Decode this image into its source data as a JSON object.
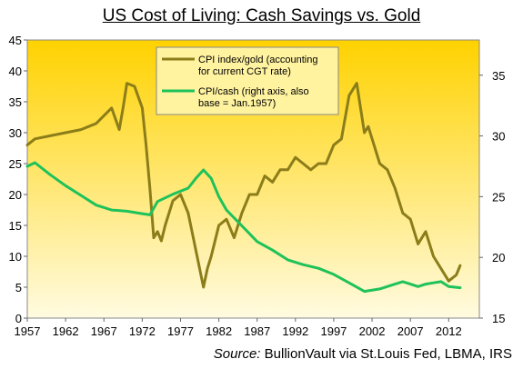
{
  "title": "US Cost of Living: Cash Savings vs. Gold",
  "source_prefix": "Source:",
  "source_text": " BullionVault via St.Louis Fed, LBMA, IRS",
  "colors": {
    "gold_line": "#8b7d1a",
    "cash_line": "#1fc25a",
    "plot_top": "#ffd200",
    "plot_bottom": "#fffbe0",
    "legend_bg": "#fff3a0"
  },
  "chart_data": {
    "type": "line",
    "title": "US Cost of Living: Cash Savings vs. Gold",
    "grid": false,
    "legend_position": "top-center",
    "x_ticks": [
      "1957",
      "1962",
      "1967",
      "1972",
      "1977",
      "1982",
      "1987",
      "1992",
      "1997",
      "2002",
      "2007",
      "2012"
    ],
    "xlim": [
      1957,
      2016
    ],
    "y_left": {
      "lim": [
        0,
        45
      ],
      "ticks": [
        "0",
        "5",
        "10",
        "15",
        "20",
        "25",
        "30",
        "35",
        "40",
        "45"
      ]
    },
    "y_right": {
      "lim": [
        15,
        37.9
      ],
      "ticks": [
        "15",
        "20",
        "25",
        "30",
        "35"
      ]
    },
    "series": [
      {
        "name": "CPI index/gold (accounting for current CGT rate)",
        "axis": "left",
        "color": "#8b7d1a",
        "x": [
          1957,
          1958,
          1960,
          1962,
          1964,
          1966,
          1968,
          1969,
          1969.5,
          1970,
          1971,
          1972,
          1972.5,
          1973,
          1973.5,
          1974,
          1974.5,
          1975,
          1976,
          1977,
          1978,
          1979,
          1980,
          1980.5,
          1981,
          1982,
          1983,
          1984,
          1985,
          1986,
          1987,
          1988,
          1989,
          1990,
          1991,
          1992,
          1993,
          1994,
          1995,
          1996,
          1997,
          1998,
          1999,
          2000,
          2001,
          2001.5,
          2002,
          2003,
          2004,
          2005,
          2006,
          2007,
          2008,
          2009,
          2010,
          2011,
          2012,
          2013,
          2013.5
        ],
        "y": [
          28,
          29,
          29.5,
          30,
          30.5,
          31.5,
          34,
          30.5,
          34,
          38,
          37.5,
          34,
          28,
          21,
          13,
          14,
          12.5,
          15,
          19,
          20,
          17,
          11,
          5,
          8,
          10,
          15,
          16,
          13,
          17,
          20,
          20,
          23,
          22,
          24,
          24,
          26,
          25,
          24,
          25,
          25,
          28,
          29,
          36,
          38,
          30,
          31,
          29,
          25,
          24,
          21,
          17,
          16,
          12,
          14,
          10,
          8,
          6,
          7,
          8.5
        ]
      },
      {
        "name": "CPI/cash (right axis, also base = Jan.1957)",
        "axis": "right",
        "color": "#1fc25a",
        "x": [
          1957,
          1958,
          1960,
          1962,
          1964,
          1966,
          1968,
          1970,
          1972,
          1973,
          1974,
          1976,
          1978,
          1979,
          1980,
          1981,
          1982,
          1983,
          1985,
          1987,
          1989,
          1991,
          1993,
          1995,
          1997,
          1999,
          2001,
          2003,
          2005,
          2006,
          2007,
          2008,
          2009,
          2010,
          2011,
          2012,
          2013.5
        ],
        "y": [
          27.5,
          27.8,
          26.8,
          25.9,
          25.1,
          24.3,
          23.9,
          23.8,
          23.6,
          23.5,
          24.6,
          25.2,
          25.7,
          26.5,
          27.2,
          26.5,
          25,
          23.9,
          22.6,
          21.3,
          20.6,
          19.8,
          19.4,
          19.1,
          18.6,
          17.9,
          17.2,
          17.4,
          17.8,
          18.0,
          17.8,
          17.6,
          17.8,
          17.9,
          18.0,
          17.6,
          17.5
        ]
      }
    ]
  }
}
